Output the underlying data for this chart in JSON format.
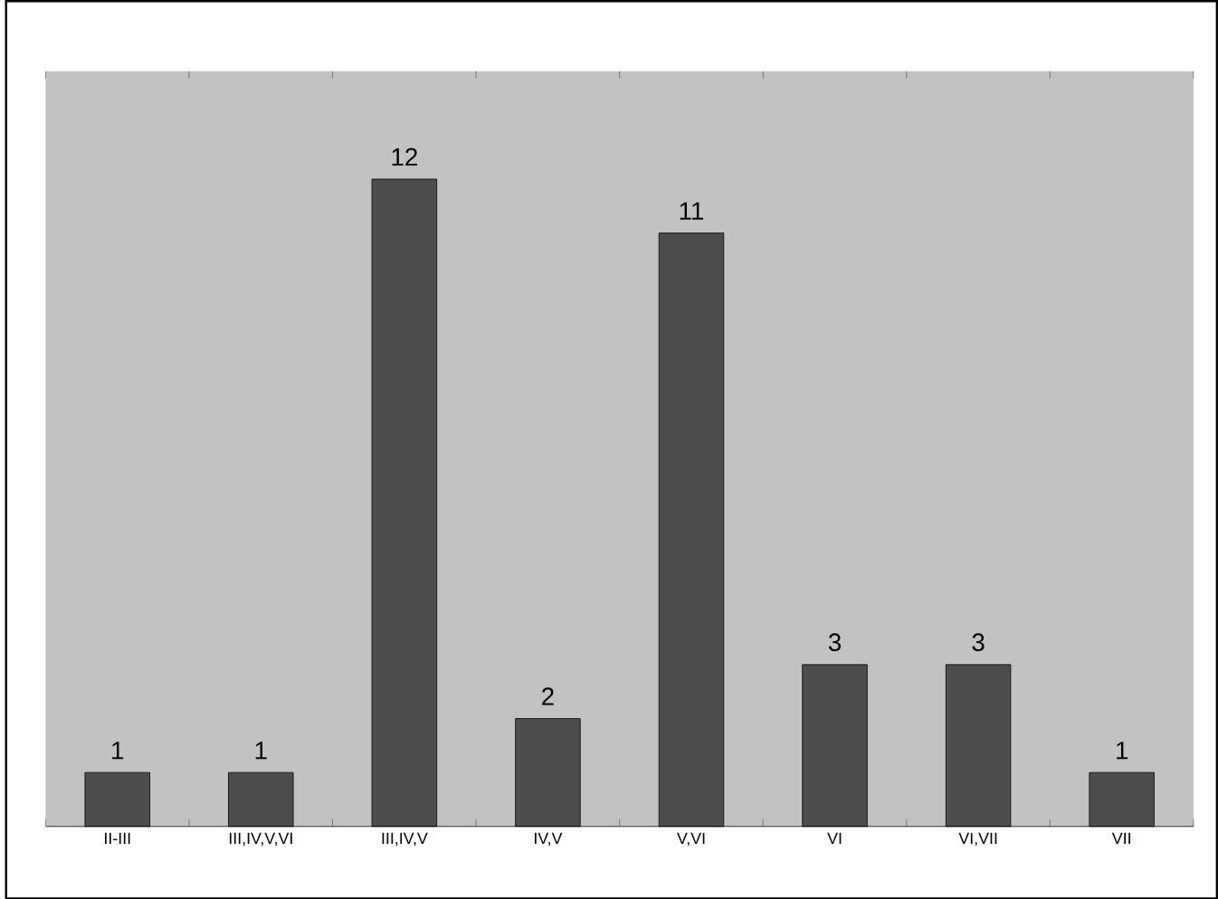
{
  "chart_data": {
    "type": "bar",
    "categories": [
      "II-III",
      "III,IV,V,VI",
      "III,IV,V",
      "IV,V",
      "V,VI",
      "VI",
      "VI,VII",
      "VII"
    ],
    "values": [
      1,
      1,
      12,
      2,
      11,
      3,
      3,
      1
    ],
    "color": "#4d4d4d",
    "data_labels": true,
    "ylim": [
      0,
      14
    ]
  }
}
